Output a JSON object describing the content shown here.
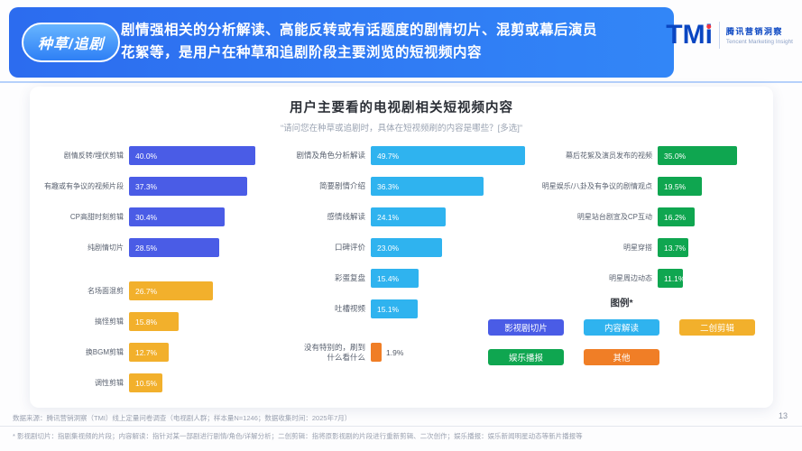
{
  "header": {
    "badge": "种草/追剧",
    "line1": "剧情强相关的分析解读、高能反转或有话题度的剧情切片、混剪或幕后演员",
    "line2": "花絮等，是用户在种草和追剧阶段主要浏览的短视频内容",
    "logo": {
      "tm": "TM",
      "i": "i",
      "cn": "腾讯营销洞察",
      "en": "Tencent Marketing Insight"
    }
  },
  "chart_data": {
    "type": "bar",
    "orientation": "horizontal",
    "unit": "%",
    "title": "用户主要看的电视剧相关短视频内容",
    "subtitle": "“请问您在种草或追剧时，具体在短视频刷的内容是哪些？[多选]”",
    "columns": [
      {
        "name": "drama-clips-and-recut",
        "items": [
          {
            "label": "剧情反转/埋伏剪辑",
            "value": 40.0,
            "category": "影视剧切片"
          },
          {
            "label": "有趣或有争议的视频片段",
            "value": 37.3,
            "category": "影视剧切片"
          },
          {
            "label": "CP高甜时刻剪辑",
            "value": 30.4,
            "category": "影视剧切片"
          },
          {
            "label": "纯剧情切片",
            "value": 28.5,
            "category": "影视剧切片"
          },
          {
            "label": "名场面混剪",
            "value": 26.7,
            "category": "二创剪辑",
            "group_gap": true
          },
          {
            "label": "搞怪剪辑",
            "value": 15.8,
            "category": "二创剪辑"
          },
          {
            "label": "换BGM剪辑",
            "value": 12.7,
            "category": "二创剪辑"
          },
          {
            "label": "调性剪辑",
            "value": 10.5,
            "category": "二创剪辑"
          }
        ]
      },
      {
        "name": "content-interpretation",
        "items": [
          {
            "label": "剧情及角色分析解读",
            "value": 49.7,
            "category": "内容解读"
          },
          {
            "label": "简要剧情介绍",
            "value": 36.3,
            "category": "内容解读"
          },
          {
            "label": "感情线解读",
            "value": 24.1,
            "category": "内容解读"
          },
          {
            "label": "口碑评价",
            "value": 23.0,
            "category": "内容解读"
          },
          {
            "label": "彩蛋复盘",
            "value": 15.4,
            "category": "内容解读"
          },
          {
            "label": "吐槽视频",
            "value": 15.1,
            "category": "内容解读"
          },
          {
            "label": "没有特别的，刷到\n什么看什么",
            "value": 1.9,
            "category": "其他",
            "group_gap": true,
            "value_outside": true
          }
        ]
      },
      {
        "name": "entertainment-news",
        "items": [
          {
            "label": "幕后花絮及演员发布的视频",
            "value": 35.0,
            "category": "娱乐播报"
          },
          {
            "label": "明星娱乐/八卦及有争议的剧情观点",
            "value": 19.5,
            "category": "娱乐播报"
          },
          {
            "label": "明星站台剧宣及CP互动",
            "value": 16.2,
            "category": "娱乐播报"
          },
          {
            "label": "明星穿搭",
            "value": 13.7,
            "category": "娱乐播报"
          },
          {
            "label": "明星周边动态",
            "value": 11.1,
            "category": "娱乐播报"
          }
        ]
      }
    ],
    "legend": {
      "title": "图例*",
      "items": [
        {
          "label": "影视剧切片",
          "color": "#4A5CE6"
        },
        {
          "label": "内容解读",
          "color": "#2FB3EF"
        },
        {
          "label": "二创剪辑",
          "color": "#F2B02C"
        },
        {
          "label": "娱乐播报",
          "color": "#0FA650"
        },
        {
          "label": "其他",
          "color": "#F07E26"
        }
      ]
    }
  },
  "footer": {
    "source": "数据来源：腾讯营销洞察（TMI）线上定量问卷调查（电视剧人群；样本量N=1246；数据收集时间：2025年7月）",
    "note": "* 影视剧切片：指剧集视频的片段；内容解读：指针对某一部剧进行剧情/角色/详解分析；二创剪辑：指将原影视剧的片段进行重新剪辑、二次创作；娱乐播报：娱乐新闻明星动态等新片播报等",
    "page_number": "13"
  },
  "colors": {
    "banner_blue": "#2E79F2",
    "accent_blue": "#2E7FF5",
    "logo_blue": "#0A46C2",
    "logo_dot_red": "#F5333F"
  }
}
